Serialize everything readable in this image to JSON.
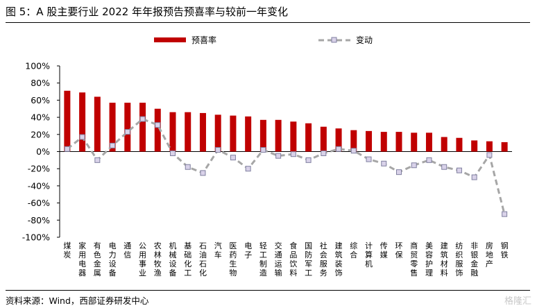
{
  "title": "图 5：A 股主要行业 2022 年年报预告预喜率与较前一年变化",
  "source": "资料来源：Wind，西部证券研发中心",
  "watermark": "格隆汇",
  "colors": {
    "bar": "#C00000",
    "line": "#A6A6A6",
    "marker_fill": "#D9D2E9",
    "marker_stroke": "#7F7F9F"
  },
  "chart_data": {
    "type": "bar",
    "title": "图 5：A 股主要行业 2022 年年报预告预喜率与较前一年变化",
    "ylim": [
      -100,
      100
    ],
    "yticks": [
      "100%",
      "80%",
      "60%",
      "40%",
      "20%",
      "0%",
      "-20%",
      "-40%",
      "-60%",
      "-80%",
      "-100%"
    ],
    "grid": false,
    "legend": "top",
    "categories": [
      "煤炭",
      "家用电器",
      "有色金属",
      "电力设备",
      "通信",
      "公用事业",
      "农林牧渔",
      "机械设备",
      "基础化工",
      "石油石化",
      "汽车",
      "医药生物",
      "电子",
      "轻工制造",
      "交通运输",
      "食品饮料",
      "国防军工",
      "社会服务",
      "建筑装饰",
      "综合",
      "计算机",
      "传媒",
      "环保",
      "商贸零售",
      "美容护理",
      "建筑材料",
      "纺织服饰",
      "非银金融",
      "房地产",
      "钢铁"
    ],
    "series": [
      {
        "name": "预喜率",
        "type": "bar",
        "values": [
          71,
          69,
          64,
          57,
          57,
          57,
          50,
          46,
          46,
          45,
          43,
          42,
          41,
          37,
          37,
          35,
          33,
          29,
          27,
          25,
          24,
          23,
          23,
          22,
          22,
          17,
          16,
          13,
          12,
          11
        ]
      },
      {
        "name": "变动",
        "type": "line",
        "values": [
          3,
          17,
          -10,
          7,
          23,
          38,
          31,
          -2,
          -18,
          -25,
          2,
          -7,
          -20,
          2,
          -5,
          -3,
          -10,
          -2,
          3,
          1,
          -9,
          -14,
          -24,
          -16,
          -10,
          -18,
          -22,
          -30,
          -4,
          -73
        ]
      }
    ]
  }
}
